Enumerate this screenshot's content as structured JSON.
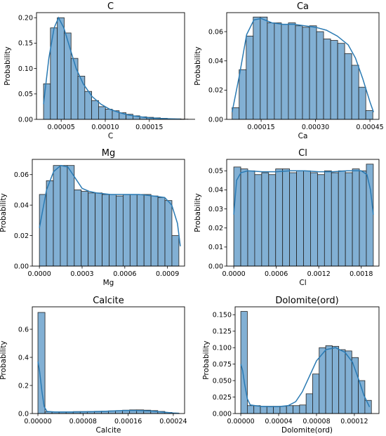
{
  "chart_data": [
    {
      "type": "bar",
      "title": "C",
      "xlabel": "C",
      "ylabel": "Probability",
      "xlim": [
        2.2e-05,
        0.00019
      ],
      "ylim": [
        0,
        0.21
      ],
      "xticks": [
        5e-05,
        0.0001,
        0.00015
      ],
      "xtick_labels": [
        "0.00005",
        "0.00010",
        "0.00015"
      ],
      "yticks": [
        0,
        0.05,
        0.1,
        0.15,
        0.2
      ],
      "ytick_labels": [
        "0.00",
        "0.05",
        "0.10",
        "0.15",
        "0.20"
      ],
      "bin_start": 3e-05,
      "bin_width": 7.8e-06,
      "values": [
        0.07,
        0.18,
        0.2,
        0.17,
        0.12,
        0.085,
        0.055,
        0.037,
        0.025,
        0.02,
        0.017,
        0.013,
        0.01,
        0.007,
        0.005,
        0.004,
        0.003,
        0.002,
        0.001,
        0.001,
        0.0005,
        0.0003
      ],
      "kde": [
        [
          3e-05,
          0.03
        ],
        [
          3.6e-05,
          0.12
        ],
        [
          4.2e-05,
          0.18
        ],
        [
          4.7e-05,
          0.2
        ],
        [
          5.3e-05,
          0.18
        ],
        [
          6e-05,
          0.14
        ],
        [
          6.7e-05,
          0.1
        ],
        [
          7.5e-05,
          0.07
        ],
        [
          8.5e-05,
          0.045
        ],
        [
          9.5e-05,
          0.03
        ],
        [
          0.000105,
          0.02
        ],
        [
          0.000115,
          0.014
        ],
        [
          0.000125,
          0.009
        ],
        [
          0.000135,
          0.006
        ],
        [
          0.00015,
          0.003
        ],
        [
          0.000165,
          0.0015
        ],
        [
          0.000185,
          0.0005
        ]
      ]
    },
    {
      "type": "bar",
      "title": "Ca",
      "xlabel": "Ca",
      "ylabel": "Probability",
      "xlim": [
        5.5e-05,
        0.000475
      ],
      "ylim": [
        0,
        0.073
      ],
      "xticks": [
        0.00015,
        0.0003,
        0.00045
      ],
      "xtick_labels": [
        "0.00015",
        "0.00030",
        "0.00045"
      ],
      "yticks": [
        0,
        0.02,
        0.04,
        0.06
      ],
      "ytick_labels": [
        "0.00",
        "0.02",
        "0.04",
        "0.06"
      ],
      "bin_start": 7e-05,
      "bin_width": 1.94e-05,
      "values": [
        0.008,
        0.034,
        0.057,
        0.07,
        0.07,
        0.066,
        0.066,
        0.065,
        0.066,
        0.064,
        0.063,
        0.064,
        0.06,
        0.055,
        0.054,
        0.052,
        0.045,
        0.037,
        0.022,
        0.006
      ],
      "kde": [
        [
          7e-05,
          0.005
        ],
        [
          9e-05,
          0.03
        ],
        [
          0.00011,
          0.058
        ],
        [
          0.00013,
          0.068
        ],
        [
          0.00015,
          0.069
        ],
        [
          0.00018,
          0.066
        ],
        [
          0.00021,
          0.065
        ],
        [
          0.00024,
          0.065
        ],
        [
          0.00027,
          0.064
        ],
        [
          0.0003,
          0.063
        ],
        [
          0.00033,
          0.061
        ],
        [
          0.00036,
          0.057
        ],
        [
          0.00039,
          0.051
        ],
        [
          0.00041,
          0.042
        ],
        [
          0.00043,
          0.028
        ],
        [
          0.00045,
          0.012
        ],
        [
          0.00046,
          0.005
        ]
      ]
    },
    {
      "type": "bar",
      "title": "Mg",
      "xlabel": "Mg",
      "ylabel": "Probability",
      "xlim": [
        -5e-05,
        0.00102
      ],
      "ylim": [
        0,
        0.07
      ],
      "xticks": [
        0.0,
        0.0003,
        0.0006,
        0.0009
      ],
      "xtick_labels": [
        "0.0000",
        "0.0003",
        "0.0006",
        "0.0009"
      ],
      "yticks": [
        0,
        0.02,
        0.04,
        0.06
      ],
      "ytick_labels": [
        "0.00",
        "0.02",
        "0.04",
        "0.06"
      ],
      "bin_start": 0.0,
      "bin_width": 4.9e-05,
      "values": [
        0.047,
        0.056,
        0.066,
        0.066,
        0.066,
        0.05,
        0.049,
        0.048,
        0.048,
        0.047,
        0.047,
        0.046,
        0.047,
        0.047,
        0.047,
        0.047,
        0.046,
        0.045,
        0.043,
        0.02
      ],
      "kde": [
        [
          0.0,
          0.025
        ],
        [
          5e-05,
          0.05
        ],
        [
          0.0001,
          0.062
        ],
        [
          0.00015,
          0.066
        ],
        [
          0.0002,
          0.065
        ],
        [
          0.00025,
          0.058
        ],
        [
          0.0003,
          0.051
        ],
        [
          0.00035,
          0.049
        ],
        [
          0.0004,
          0.048
        ],
        [
          0.0005,
          0.047
        ],
        [
          0.0006,
          0.047
        ],
        [
          0.0007,
          0.047
        ],
        [
          0.0008,
          0.046
        ],
        [
          0.00088,
          0.045
        ],
        [
          0.00093,
          0.04
        ],
        [
          0.00097,
          0.028
        ],
        [
          0.00099,
          0.013
        ]
      ]
    },
    {
      "type": "bar",
      "title": "Cl",
      "xlabel": "Cl",
      "ylabel": "Probability",
      "xlim": [
        -0.0001,
        0.00205
      ],
      "ylim": [
        0,
        0.056
      ],
      "xticks": [
        0.0,
        0.0006,
        0.0012,
        0.0018
      ],
      "xtick_labels": [
        "0.0000",
        "0.0006",
        "0.0012",
        "0.0018"
      ],
      "yticks": [
        0,
        0.01,
        0.02,
        0.03,
        0.04,
        0.05
      ],
      "ytick_labels": [
        "0.00",
        "0.01",
        "0.02",
        "0.03",
        "0.04",
        "0.05"
      ],
      "bin_start": 0.0,
      "bin_width": 9.85e-05,
      "values": [
        0.052,
        0.051,
        0.05,
        0.048,
        0.049,
        0.048,
        0.051,
        0.051,
        0.049,
        0.05,
        0.05,
        0.049,
        0.048,
        0.05,
        0.049,
        0.05,
        0.049,
        0.051,
        0.05,
        0.0535
      ],
      "kde": [
        [
          0.0,
          0.027
        ],
        [
          4e-05,
          0.045
        ],
        [
          0.0001,
          0.049
        ],
        [
          0.0002,
          0.05
        ],
        [
          0.0004,
          0.0495
        ],
        [
          0.0006,
          0.0495
        ],
        [
          0.0008,
          0.05
        ],
        [
          0.001,
          0.05
        ],
        [
          0.0012,
          0.0495
        ],
        [
          0.0014,
          0.0495
        ],
        [
          0.0016,
          0.05
        ],
        [
          0.0018,
          0.05
        ],
        [
          0.00188,
          0.048
        ],
        [
          0.00193,
          0.04
        ],
        [
          0.00197,
          0.027
        ]
      ]
    },
    {
      "type": "bar",
      "title": "Calcite",
      "xlabel": "Calcite",
      "ylabel": "Probability",
      "xlim": [
        -1e-05,
        0.00026
      ],
      "ylim": [
        0,
        0.76
      ],
      "xticks": [
        0.0,
        8e-05,
        0.00016,
        0.00024
      ],
      "xtick_labels": [
        "0.00000",
        "0.00008",
        "0.00016",
        "0.00024"
      ],
      "yticks": [
        0,
        0.2,
        0.4,
        0.6
      ],
      "ytick_labels": [
        "0.0",
        "0.2",
        "0.4",
        "0.6"
      ],
      "bin_start": 0.0,
      "bin_width": 1.25e-05,
      "values": [
        0.72,
        0.012,
        0.013,
        0.013,
        0.013,
        0.014,
        0.014,
        0.015,
        0.016,
        0.017,
        0.019,
        0.021,
        0.024,
        0.026,
        0.026,
        0.024,
        0.021,
        0.015,
        0.008,
        0.003
      ],
      "kde": [
        [
          0.0,
          0.37
        ],
        [
          3e-06,
          0.3
        ],
        [
          7e-06,
          0.16
        ],
        [
          1.1e-05,
          0.05
        ],
        [
          1.6e-05,
          0.015
        ],
        [
          3e-05,
          0.011
        ],
        [
          6e-05,
          0.011
        ],
        [
          9e-05,
          0.013
        ],
        [
          0.00012,
          0.016
        ],
        [
          0.00015,
          0.021
        ],
        [
          0.00017,
          0.022
        ],
        [
          0.0002,
          0.018
        ],
        [
          0.00022,
          0.011
        ],
        [
          0.00024,
          0.004
        ],
        [
          0.00025,
          0.002
        ]
      ]
    },
    {
      "type": "bar",
      "title": "Dolomite(ord)",
      "xlabel": "Dolomite(ord)",
      "ylabel": "Probability",
      "xlim": [
        -6e-06,
        0.000146
      ],
      "ylim": [
        0,
        0.162
      ],
      "xticks": [
        0.0,
        4e-05,
        8e-05,
        0.00012
      ],
      "xtick_labels": [
        "0.00000",
        "0.00004",
        "0.00008",
        "0.00012"
      ],
      "yticks": [
        0,
        0.025,
        0.05,
        0.075,
        0.1,
        0.125,
        0.15
      ],
      "ytick_labels": [
        "0.000",
        "0.025",
        "0.050",
        "0.075",
        "0.100",
        "0.125",
        "0.150"
      ],
      "bin_start": 0.0,
      "bin_width": 6.9e-06,
      "values": [
        0.155,
        0.012,
        0.012,
        0.011,
        0.011,
        0.011,
        0.011,
        0.012,
        0.012,
        0.013,
        0.03,
        0.06,
        0.1,
        0.103,
        0.102,
        0.097,
        0.095,
        0.085,
        0.05,
        0.02
      ],
      "kde": [
        [
          0.0,
          0.075
        ],
        [
          2e-06,
          0.065
        ],
        [
          4e-06,
          0.045
        ],
        [
          7e-06,
          0.022
        ],
        [
          1e-05,
          0.013
        ],
        [
          2e-05,
          0.011
        ],
        [
          3e-05,
          0.0105
        ],
        [
          4e-05,
          0.0105
        ],
        [
          5e-05,
          0.012
        ],
        [
          5.8e-05,
          0.018
        ],
        [
          6.5e-05,
          0.033
        ],
        [
          7.2e-05,
          0.055
        ],
        [
          8e-05,
          0.08
        ],
        [
          9e-05,
          0.097
        ],
        [
          0.0001,
          0.1
        ],
        [
          0.00011,
          0.093
        ],
        [
          0.000118,
          0.078
        ],
        [
          0.000125,
          0.05
        ],
        [
          0.00013,
          0.028
        ],
        [
          0.000136,
          0.01
        ]
      ]
    }
  ]
}
